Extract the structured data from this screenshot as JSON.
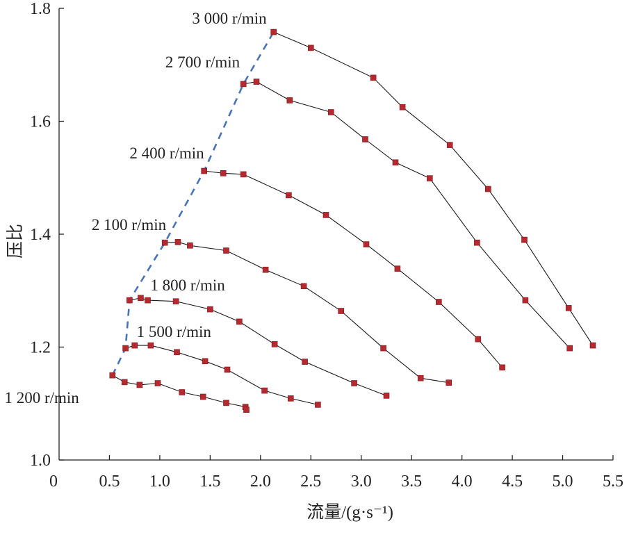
{
  "chart_data": {
    "type": "line",
    "title": "",
    "xlabel": "流量/(g·s⁻¹)",
    "ylabel": "压比",
    "xlim": [
      0,
      5.5
    ],
    "ylim": [
      1.0,
      1.8
    ],
    "xticks": [
      "0",
      "0.5",
      "1.0",
      "1.5",
      "2.0",
      "2.5",
      "3.0",
      "3.5",
      "4.0",
      "4.5",
      "5.0",
      "5.5"
    ],
    "yticks": [
      "1.0",
      "1.2",
      "1.4",
      "1.6",
      "1.8"
    ],
    "grid": false,
    "legend": "none",
    "colors": {
      "marker": "#b52a30",
      "line": "#1a1a1a",
      "surge_line": "#4a73b5"
    },
    "series": [
      {
        "name": "1 200 r/min",
        "x": [
          0.53,
          0.65,
          0.8,
          0.98,
          1.22,
          1.43,
          1.66,
          1.85,
          1.86
        ],
        "y": [
          1.15,
          1.138,
          1.133,
          1.136,
          1.12,
          1.112,
          1.101,
          1.094,
          1.089
        ]
      },
      {
        "name": "1 500 r/min",
        "x": [
          0.66,
          0.75,
          0.91,
          1.17,
          1.45,
          1.67,
          2.04,
          2.3,
          2.57
        ],
        "y": [
          1.198,
          1.203,
          1.203,
          1.191,
          1.175,
          1.16,
          1.123,
          1.109,
          1.098
        ]
      },
      {
        "name": "1 800 r/min",
        "x": [
          0.7,
          0.81,
          0.88,
          1.16,
          1.5,
          1.79,
          2.14,
          2.44,
          2.93,
          3.25
        ],
        "y": [
          1.283,
          1.287,
          1.283,
          1.281,
          1.267,
          1.245,
          1.205,
          1.174,
          1.136,
          1.114
        ]
      },
      {
        "name": "2 100 r/min",
        "x": [
          1.05,
          1.18,
          1.3,
          1.66,
          2.05,
          2.43,
          2.8,
          3.22,
          3.59,
          3.87
        ],
        "y": [
          1.385,
          1.386,
          1.38,
          1.371,
          1.337,
          1.308,
          1.264,
          1.198,
          1.145,
          1.137
        ]
      },
      {
        "name": "2 400 r/min",
        "x": [
          1.44,
          1.63,
          1.83,
          2.28,
          2.65,
          3.05,
          3.36,
          3.77,
          4.16,
          4.4
        ],
        "y": [
          1.512,
          1.508,
          1.506,
          1.469,
          1.434,
          1.382,
          1.339,
          1.28,
          1.214,
          1.164
        ]
      },
      {
        "name": "2 700 r/min",
        "x": [
          1.83,
          1.96,
          2.29,
          2.7,
          3.04,
          3.34,
          3.68,
          4.15,
          4.63,
          5.07
        ],
        "y": [
          1.666,
          1.67,
          1.637,
          1.616,
          1.568,
          1.527,
          1.499,
          1.385,
          1.283,
          1.198
        ]
      },
      {
        "name": "3 000 r/min",
        "x": [
          2.13,
          2.5,
          3.12,
          3.41,
          3.88,
          4.26,
          4.62,
          5.06,
          5.3
        ],
        "y": [
          1.758,
          1.73,
          1.677,
          1.625,
          1.558,
          1.48,
          1.39,
          1.269,
          1.203
        ]
      }
    ],
    "surge_line": {
      "x": [
        0.53,
        0.66,
        0.7,
        1.05,
        1.44,
        1.83,
        2.13
      ],
      "y": [
        1.15,
        1.198,
        1.283,
        1.385,
        1.512,
        1.666,
        1.758
      ]
    }
  }
}
